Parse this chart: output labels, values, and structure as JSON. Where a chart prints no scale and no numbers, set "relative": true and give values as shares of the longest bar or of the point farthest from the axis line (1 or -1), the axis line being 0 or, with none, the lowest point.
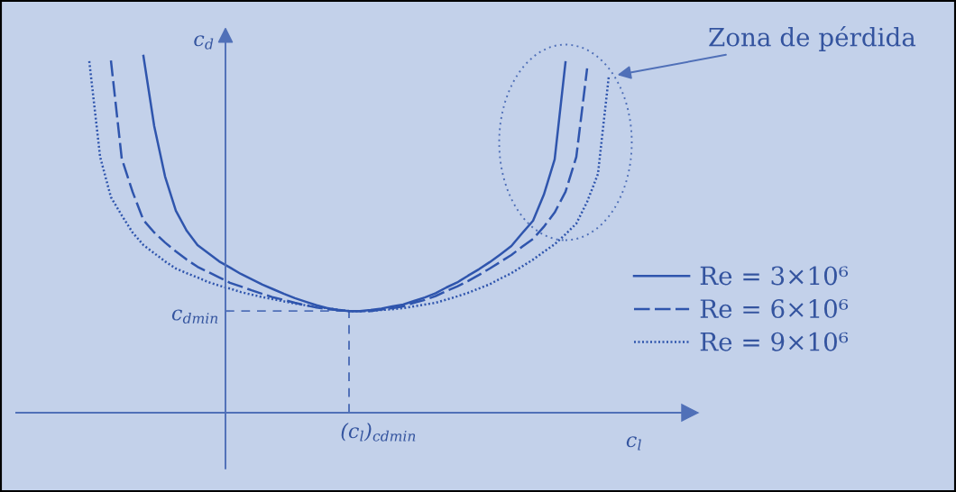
{
  "chart_data": {
    "type": "line",
    "relative": true,
    "xlabel": "c$_{l}$",
    "ylabel": "c$_{d}$",
    "legend": "right",
    "categories": [
      null,
      null,
      null,
      null,
      null,
      null,
      null,
      null,
      null,
      null,
      null,
      null,
      null,
      null,
      null,
      null,
      null,
      null,
      null,
      null,
      null,
      null,
      null,
      null,
      null,
      null,
      null,
      null,
      null,
      null,
      null,
      null,
      null,
      null,
      null,
      null,
      null,
      null,
      null,
      null,
      null,
      null,
      null,
      null,
      null,
      null,
      null,
      null,
      null
    ],
    "series": [
      {
        "name": "Re = 3×10⁶",
        "color": "#2f55ad",
        "line_style": "solid",
        "values": [
          null,
          null,
          null,
          null,
          null,
          1.0,
          0.803,
          0.662,
          0.566,
          0.51,
          0.47,
          0.447,
          0.424,
          0.407,
          0.389,
          0.374,
          0.359,
          0.346,
          0.333,
          0.321,
          0.311,
          0.301,
          0.293,
          0.288,
          0.285,
          0.285,
          0.288,
          0.292,
          0.298,
          0.303,
          0.313,
          0.323,
          0.335,
          0.351,
          0.365,
          0.384,
          0.402,
          0.422,
          0.444,
          0.467,
          0.503,
          0.538,
          0.611,
          0.71,
          0.982,
          null,
          null,
          null,
          null
        ]
      },
      {
        "name": "Re = 6×10⁶",
        "color": "#2f55ad",
        "line_style": "dashed",
        "values": [
          null,
          null,
          0.987,
          0.712,
          0.619,
          0.54,
          0.505,
          0.477,
          0.452,
          0.429,
          0.409,
          0.394,
          0.379,
          0.364,
          0.354,
          0.343,
          0.333,
          0.323,
          0.316,
          0.308,
          0.301,
          0.295,
          0.29,
          0.288,
          0.285,
          0.285,
          0.285,
          0.289,
          0.293,
          0.298,
          0.308,
          0.316,
          0.327,
          0.341,
          0.354,
          0.369,
          0.386,
          0.404,
          0.423,
          0.442,
          0.465,
          0.487,
          0.521,
          0.561,
          0.619,
          0.717,
          0.965,
          null,
          null
        ]
      },
      {
        "name": "Re = 9×10⁶",
        "color": "#2f55ad",
        "line_style": "dotted",
        "values": [
          0.985,
          0.717,
          0.604,
          0.553,
          0.505,
          0.47,
          0.447,
          0.424,
          0.404,
          0.391,
          0.379,
          0.366,
          0.356,
          0.348,
          0.338,
          0.331,
          0.324,
          0.318,
          0.312,
          0.306,
          0.301,
          0.297,
          0.293,
          0.288,
          0.285,
          0.285,
          0.285,
          0.288,
          0.29,
          0.293,
          0.298,
          0.303,
          0.308,
          0.317,
          0.326,
          0.336,
          0.348,
          0.36,
          0.376,
          0.391,
          0.41,
          0.429,
          0.451,
          0.472,
          0.5,
          0.53,
          0.591,
          0.669,
          0.942
        ]
      }
    ],
    "ref_lines": [
      {
        "axis": "y",
        "value": 0.285,
        "label": "c$_{dmin}$",
        "line_style": "dashed"
      }
    ],
    "annotations": [
      "Zona de pérdida",
      "(c$_{l}$)$_{cdmin}$"
    ]
  }
}
